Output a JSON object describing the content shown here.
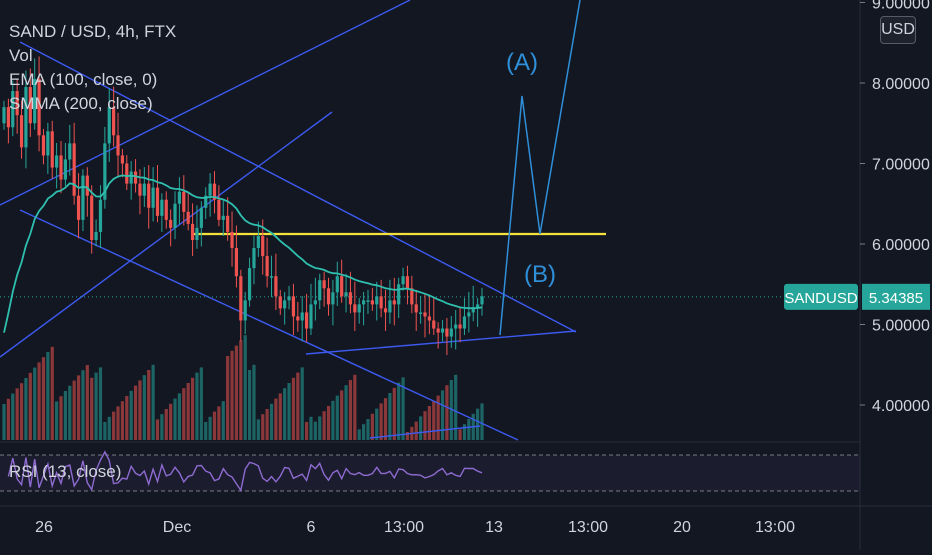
{
  "legend": {
    "title": "SAND / USD, 4h, FTX",
    "vol": "Vol",
    "ema": "EMA (100, close, 0)",
    "smma": "SMMA (200, close)",
    "rsi": "RSI (13, close)"
  },
  "currency_button": "USD",
  "symbol_tag": "SANDUSD",
  "price_tag": "5.34385",
  "annotations": {
    "wave_a": "(A)",
    "wave_b": "(B)"
  },
  "colors": {
    "background": "#131722",
    "up": "#26a69a",
    "down": "#ef5350",
    "ema": "#2fbfae",
    "trendline": "#3d5af1",
    "resistance": "#f5e13b",
    "projection": "#2f8fd8",
    "rsi": "#8e6bd1",
    "tag": "#26a69a"
  },
  "chart_data": {
    "type": "candlestick",
    "title": "SAND / USD, 4h, FTX",
    "y_axis": {
      "ticks": [
        4.0,
        5.0,
        6.0,
        7.0,
        8.0,
        9.0
      ],
      "tick_labels": [
        "4.00000",
        "5.00000",
        "6.00000",
        "7.00000",
        "8.00000",
        "9.00000"
      ],
      "range": [
        3.6,
        9.1
      ]
    },
    "x_axis": {
      "tick_labels": [
        "26",
        "Dec",
        "6",
        "13:00",
        "13",
        "13:00",
        "20",
        "13:00"
      ]
    },
    "last_price": 5.34385,
    "resistance_level": 6.09,
    "closes": [
      7.7,
      7.45,
      7.9,
      7.6,
      7.2,
      7.95,
      7.5,
      8.05,
      7.35,
      7.1,
      7.4,
      6.95,
      7.1,
      6.8,
      7.05,
      7.25,
      6.6,
      6.3,
      6.85,
      6.6,
      6.05,
      6.15,
      6.55,
      7.25,
      7.7,
      7.35,
      7.1,
      7.0,
      6.75,
      6.9,
      6.75,
      6.6,
      6.75,
      6.45,
      6.7,
      6.35,
      6.55,
      6.3,
      6.2,
      6.5,
      6.65,
      6.4,
      6.25,
      6.05,
      6.2,
      6.45,
      6.6,
      6.75,
      6.55,
      6.3,
      6.35,
      6.15,
      5.95,
      5.6,
      5.05,
      5.3,
      5.7,
      5.95,
      6.1,
      5.85,
      5.6,
      5.6,
      5.35,
      5.2,
      5.3,
      5.35,
      5.1,
      5.05,
      5.15,
      4.95,
      5.25,
      5.3,
      5.55,
      5.45,
      5.25,
      5.4,
      5.6,
      5.35,
      5.4,
      5.25,
      5.15,
      5.25,
      5.3,
      5.3,
      5.25,
      5.35,
      5.2,
      5.15,
      5.3,
      5.25,
      5.5,
      5.6,
      5.45,
      5.25,
      5.15,
      5.15,
      5.1,
      5.05,
      4.95,
      4.9,
      4.95,
      4.85,
      4.95,
      5.0,
      4.95,
      5.1,
      5.15,
      5.2,
      5.25,
      5.35
    ],
    "rsi_range": [
      20,
      80
    ],
    "rsi_levels": [
      70,
      30
    ]
  }
}
